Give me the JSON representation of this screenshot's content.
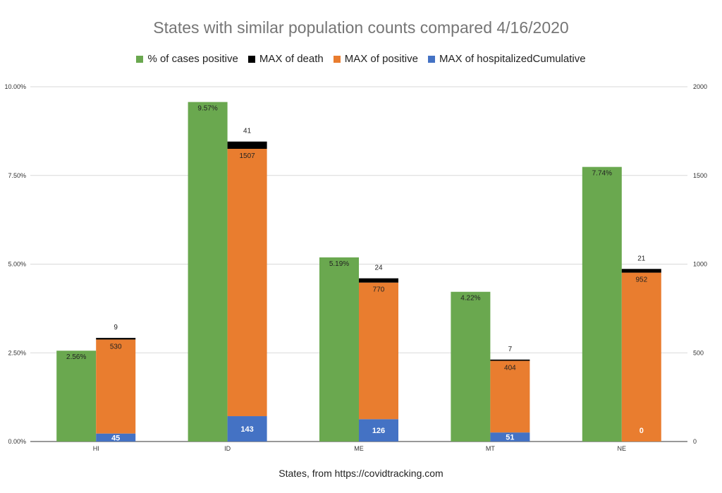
{
  "chart_data": {
    "type": "bar",
    "title": "States with similar population counts compared 4/16/2020",
    "xlabel": "States, from https://covidtracking.com",
    "categories": [
      "HI",
      "ID",
      "ME",
      "MT",
      "NE"
    ],
    "left_axis": {
      "ylim": [
        0,
        10
      ],
      "ticks": [
        "0.00%",
        "2.50%",
        "5.00%",
        "7.50%",
        "10.00%"
      ]
    },
    "right_axis": {
      "ylim": [
        0,
        2000
      ],
      "ticks": [
        "0",
        "500",
        "1000",
        "1500",
        "2000"
      ]
    },
    "grid": true,
    "legend_position": "top",
    "series": [
      {
        "name": "% of cases positive",
        "axis": "left",
        "color": "#6aa84f",
        "values": [
          2.56,
          9.57,
          5.19,
          4.22,
          7.74
        ],
        "labels": [
          "2.56%",
          "9.57%",
          "5.19%",
          "4.22%",
          "7.74%"
        ]
      },
      {
        "name": "MAX of death",
        "axis": "right",
        "stack": "counts",
        "color": "#000000",
        "values": [
          9,
          41,
          24,
          7,
          21
        ],
        "labels": [
          "9",
          "41",
          "24",
          "7",
          "21"
        ]
      },
      {
        "name": "MAX of positive",
        "axis": "right",
        "stack": "counts",
        "color": "#e97d2f",
        "values": [
          530,
          1507,
          770,
          404,
          952
        ],
        "labels": [
          "530",
          "1507",
          "770",
          "404",
          "952"
        ]
      },
      {
        "name": "MAX of hospitalizedCumulative",
        "axis": "right",
        "stack": "counts",
        "color": "#4472c4",
        "values": [
          45,
          143,
          126,
          51,
          0
        ],
        "labels": [
          "45",
          "143",
          "126",
          "51",
          "0"
        ]
      }
    ]
  }
}
